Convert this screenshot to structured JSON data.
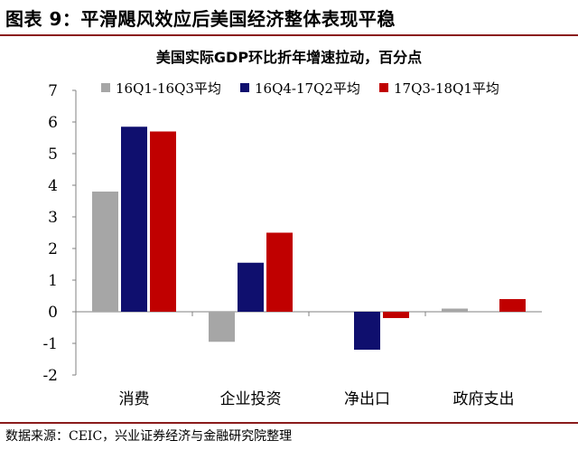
{
  "header": {
    "title": "图表 9：平滑飓风效应后美国经济整体表现平稳"
  },
  "footer": {
    "source": "数据来源：CEIC，兴业证券经济与金融研究院整理"
  },
  "colors": {
    "accent_rule": "#8a1b1b",
    "series": [
      "#a6a6a6",
      "#0f0f6e",
      "#c00000"
    ]
  },
  "chart_data": {
    "type": "bar",
    "title": "美国实际GDP环比折年增速拉动，百分点",
    "xlabel": "",
    "ylabel": "",
    "categories": [
      "消费",
      "企业投资",
      "净出口",
      "政府支出"
    ],
    "ylim": [
      -2,
      7
    ],
    "yticks": [
      -2,
      -1,
      0,
      1,
      2,
      3,
      4,
      5,
      6,
      7
    ],
    "grid": false,
    "legend_position": "top",
    "series": [
      {
        "name": "16Q1-16Q3平均",
        "values": [
          3.8,
          -0.95,
          0.0,
          0.1
        ]
      },
      {
        "name": "16Q4-17Q2平均",
        "values": [
          5.85,
          1.55,
          -1.2,
          0.0
        ]
      },
      {
        "name": "17Q3-18Q1平均",
        "values": [
          5.7,
          2.5,
          -0.2,
          0.4
        ]
      }
    ]
  }
}
